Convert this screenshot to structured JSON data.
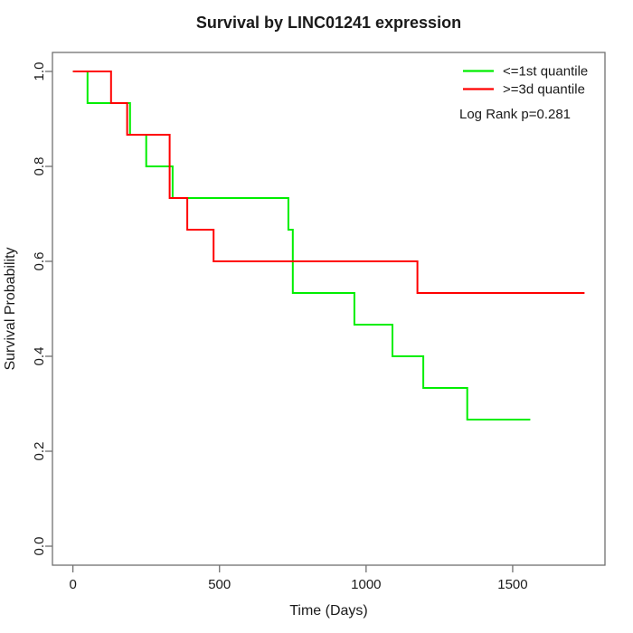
{
  "title": "Survival by LINC01241 expression",
  "chart_data": {
    "type": "line",
    "subtype": "kaplan-meier-step",
    "title": "Survival by LINC01241 expression",
    "xlabel": "Time (Days)",
    "ylabel": "Survival Probability",
    "xlim": [
      0,
      1745
    ],
    "ylim": [
      0.0,
      1.0
    ],
    "x_ticks": [
      0,
      500,
      1000,
      1500
    ],
    "x_tick_labels": [
      "0",
      "500",
      "1000",
      "1500"
    ],
    "y_ticks": [
      0.0,
      0.2,
      0.4,
      0.6,
      0.8,
      1.0
    ],
    "y_tick_labels": [
      "0.0",
      "0.2",
      "0.4",
      "0.6",
      "0.8",
      "1.0"
    ],
    "grid": false,
    "legend_position": "top-right",
    "annotation": "Log Rank p=0.281",
    "frame_color": "#707070",
    "series": [
      {
        "name": "<=1st quantile",
        "color": "#00ee00",
        "points": [
          [
            0,
            1.0
          ],
          [
            50,
            0.9333
          ],
          [
            195,
            0.8667
          ],
          [
            250,
            0.8
          ],
          [
            340,
            0.7333
          ],
          [
            735,
            0.6667
          ],
          [
            750,
            0.5333
          ],
          [
            960,
            0.4667
          ],
          [
            1090,
            0.4
          ],
          [
            1195,
            0.3333
          ],
          [
            1345,
            0.2667
          ]
        ],
        "end_time": 1560
      },
      {
        "name": ">=3d quantile",
        "color": "#ff0000",
        "points": [
          [
            0,
            1.0
          ],
          [
            130,
            0.9333
          ],
          [
            185,
            0.8667
          ],
          [
            330,
            0.7333
          ],
          [
            390,
            0.6667
          ],
          [
            480,
            0.6
          ],
          [
            1175,
            0.5333
          ]
        ],
        "end_time": 1745
      }
    ]
  }
}
